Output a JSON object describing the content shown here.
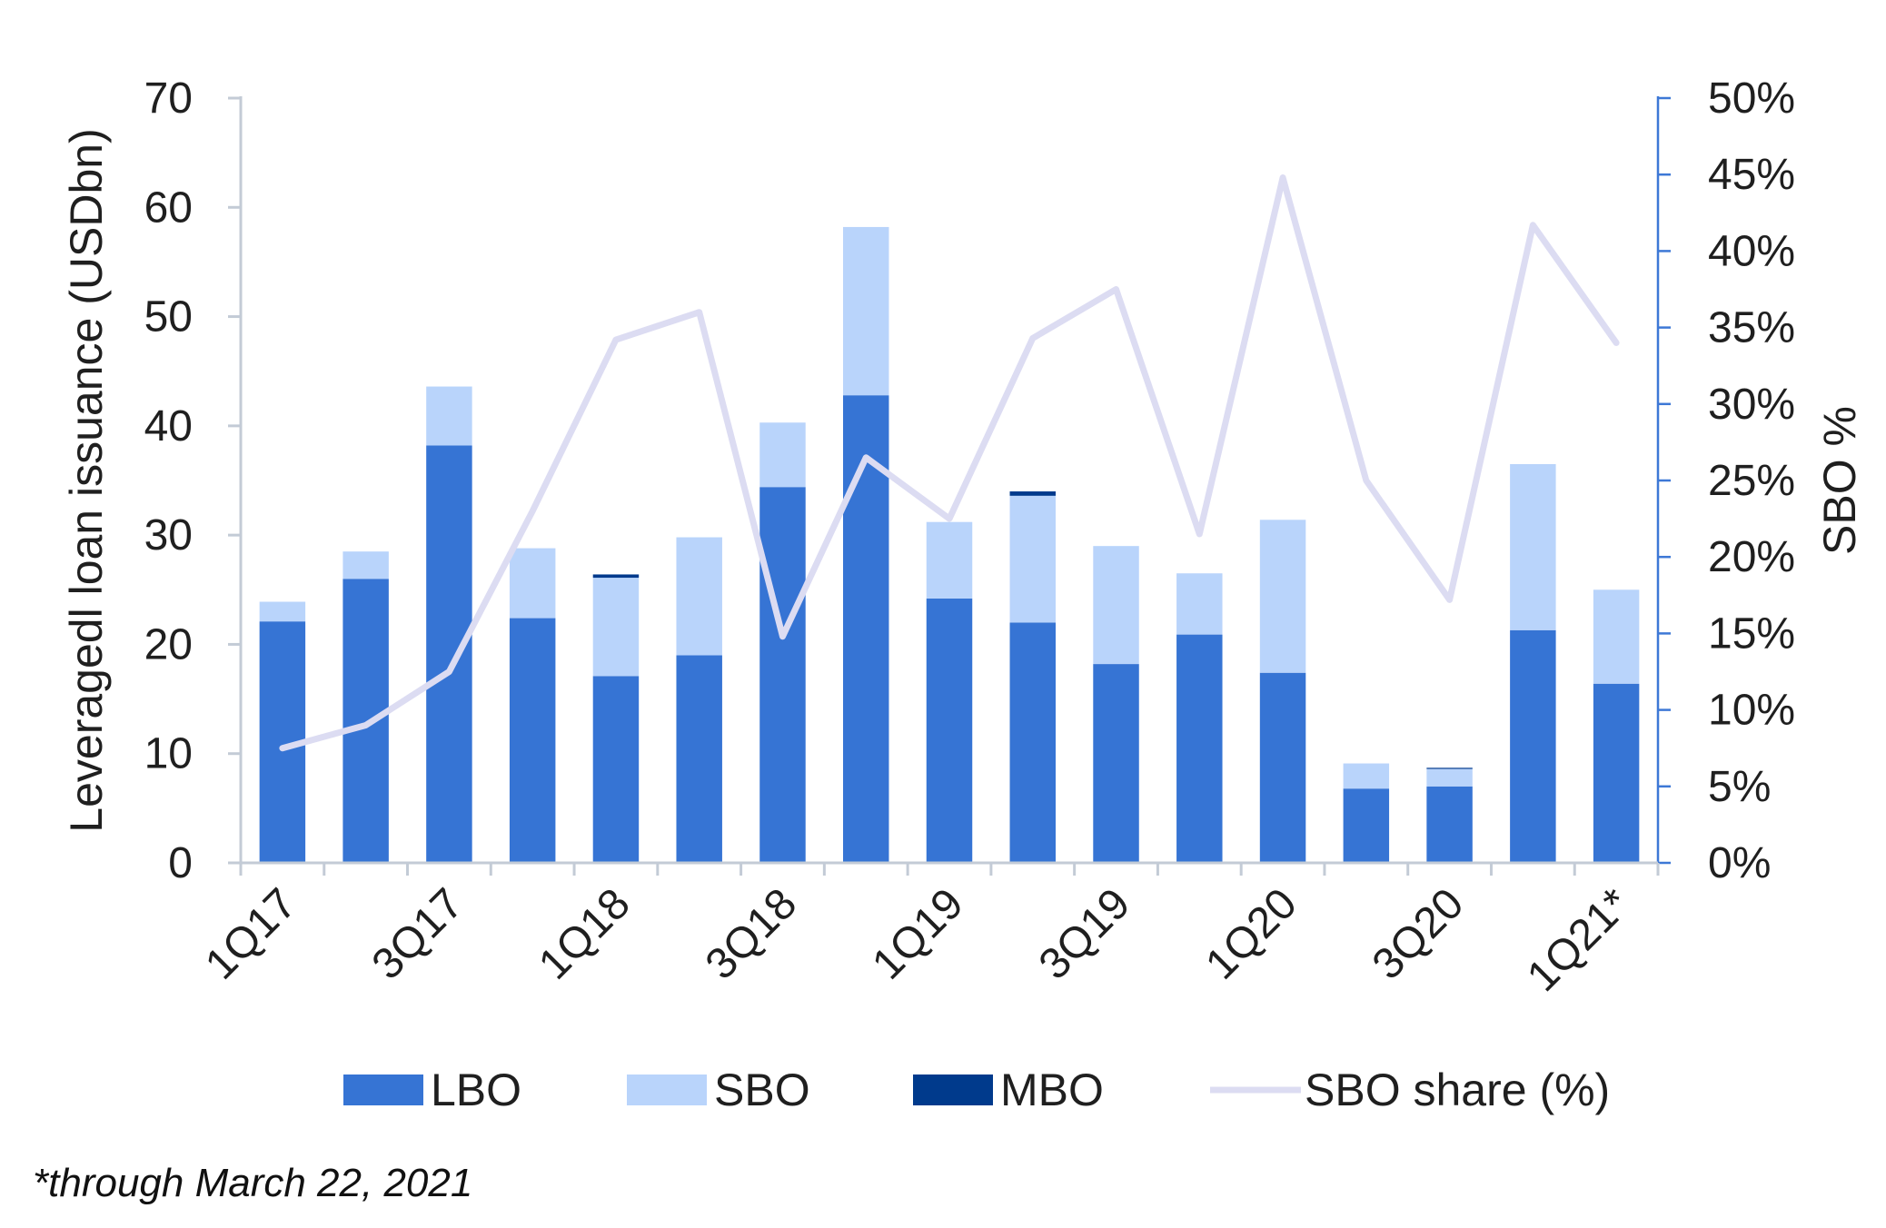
{
  "chart_data": {
    "type": "bar",
    "stacked": true,
    "categories": [
      "1Q17",
      "2Q17",
      "3Q17",
      "4Q17",
      "1Q18",
      "2Q18",
      "3Q18",
      "4Q18",
      "1Q19",
      "2Q19",
      "3Q19",
      "4Q19",
      "1Q20",
      "2Q20",
      "3Q20",
      "4Q20",
      "1Q21*"
    ],
    "tick_labels": [
      "1Q17",
      "3Q17",
      "1Q18",
      "3Q18",
      "1Q19",
      "3Q19",
      "1Q20",
      "3Q20",
      "1Q21*"
    ],
    "series": [
      {
        "name": "LBO",
        "color": "#3674d4",
        "values": [
          22.1,
          26.0,
          38.2,
          22.4,
          17.1,
          19.0,
          34.4,
          42.8,
          24.2,
          22.0,
          18.2,
          20.9,
          17.4,
          6.8,
          7.0,
          21.3,
          16.4
        ]
      },
      {
        "name": "SBO",
        "color": "#b9d4fb",
        "values": [
          1.8,
          2.5,
          5.4,
          6.4,
          9.0,
          10.8,
          5.9,
          15.4,
          7.0,
          11.6,
          10.8,
          5.6,
          14.0,
          2.3,
          1.6,
          15.2,
          8.6
        ]
      },
      {
        "name": "MBO",
        "color": "#003a8c",
        "values": [
          0,
          0,
          0,
          0,
          0.3,
          0,
          0,
          0,
          0,
          0.4,
          0,
          0,
          0,
          0,
          0.1,
          0,
          0
        ]
      }
    ],
    "line_series": {
      "name": "SBO share (%)",
      "color": "#dcdcf2",
      "axis": "right",
      "values": [
        7.5,
        9.0,
        12.5,
        23.0,
        34.2,
        36.0,
        14.8,
        26.5,
        22.5,
        34.3,
        37.5,
        21.5,
        44.8,
        25.0,
        17.2,
        41.7,
        34.0
      ]
    },
    "ylabel": "Leveragedl loan issuance (USDbn)",
    "ylim": [
      0,
      70
    ],
    "yticks": [
      "0",
      "10",
      "20",
      "30",
      "40",
      "50",
      "60",
      "70"
    ],
    "y2label": "SBO %",
    "y2lim": [
      0,
      50
    ],
    "y2ticks": [
      "0%",
      "5%",
      "10%",
      "15%",
      "20%",
      "25%",
      "30%",
      "35%",
      "40%",
      "45%",
      "50%"
    ],
    "legend_position": "bottom",
    "grid": false
  },
  "footnote": "*through March 22, 2021"
}
